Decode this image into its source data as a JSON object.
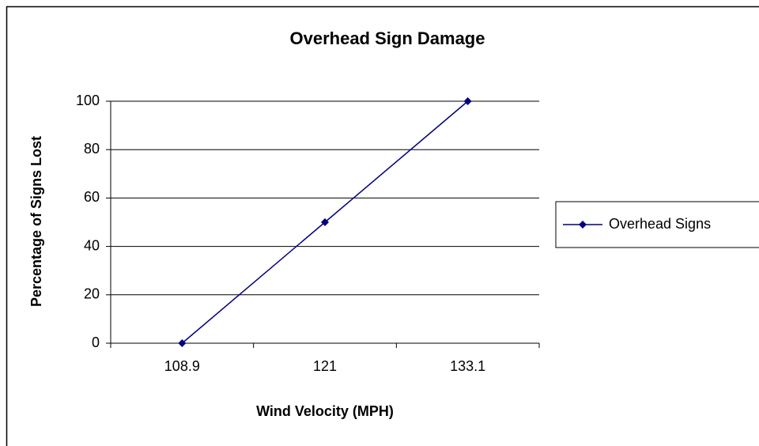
{
  "chart_data": {
    "type": "line",
    "title": "Overhead Sign Damage",
    "x_label": "Wind Velocity (MPH)",
    "y_label": "Percentage of Signs Lost",
    "categories": [
      "108.9",
      "121",
      "133.1"
    ],
    "series": [
      {
        "name": "Overhead Signs",
        "color": "#000080",
        "values": [
          0,
          50,
          100
        ]
      }
    ],
    "ylim": [
      0,
      100
    ],
    "yticks": [
      0,
      20,
      40,
      60,
      80,
      100
    ],
    "grid": true,
    "legend": "right"
  }
}
